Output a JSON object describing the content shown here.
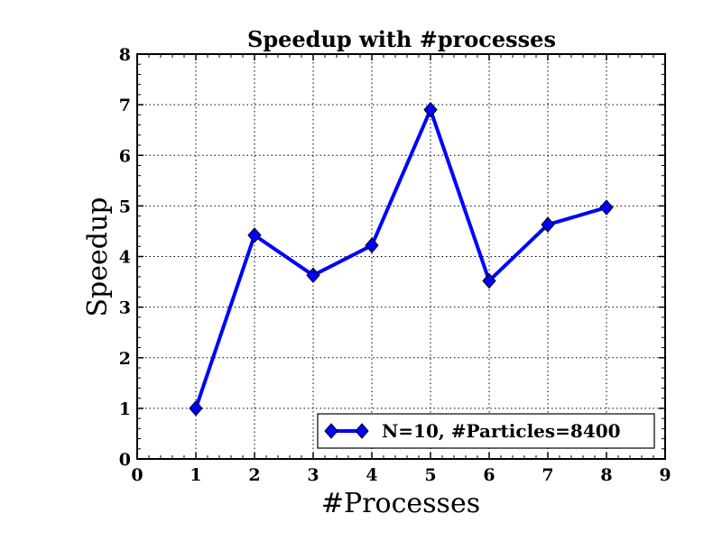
{
  "chart_data": {
    "type": "line",
    "title": "Speedup with #processes",
    "xlabel": "#Processes",
    "ylabel": "Speedup",
    "xlim": [
      0,
      9
    ],
    "ylim": [
      0,
      8
    ],
    "xticks": [
      0,
      1,
      2,
      3,
      4,
      5,
      6,
      7,
      8,
      9
    ],
    "yticks": [
      0,
      1,
      2,
      3,
      4,
      5,
      6,
      7,
      8
    ],
    "grid": true,
    "legend_position": "lower-right",
    "series": [
      {
        "name": "N=10, #Particles=8400",
        "color": "#0000ff",
        "marker": "diamond",
        "x": [
          1,
          2,
          3,
          4,
          5,
          6,
          7,
          8
        ],
        "y": [
          1.0,
          4.42,
          3.63,
          4.22,
          6.9,
          3.52,
          4.63,
          4.97
        ]
      }
    ]
  }
}
